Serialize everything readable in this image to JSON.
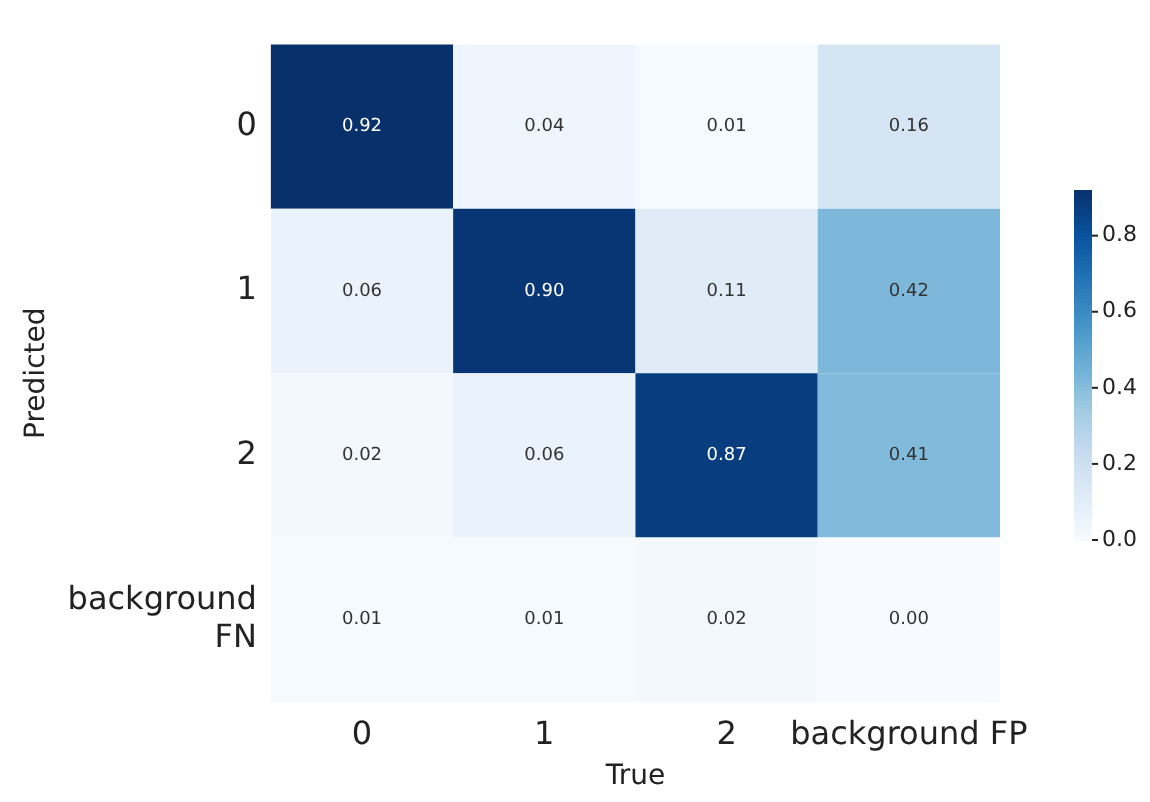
{
  "chart_data": {
    "type": "heatmap",
    "xlabel": "True",
    "ylabel": "Predicted",
    "categories": [
      "0",
      "1",
      "2",
      "background FP"
    ],
    "y_categories": [
      "0",
      "1",
      "2",
      "background FN"
    ],
    "cells": [
      [
        0.92,
        0.04,
        0.01,
        0.16
      ],
      [
        0.06,
        0.9,
        0.11,
        0.42
      ],
      [
        0.02,
        0.06,
        0.87,
        0.41
      ],
      [
        0.01,
        0.01,
        0.02,
        0.0
      ]
    ],
    "cell_labels": [
      [
        "0.92",
        "0.04",
        "0.01",
        "0.16"
      ],
      [
        "0.06",
        "0.90",
        "0.11",
        "0.42"
      ],
      [
        "0.02",
        "0.06",
        "0.87",
        "0.41"
      ],
      [
        "0.01",
        "0.01",
        "0.02",
        "0.00"
      ]
    ],
    "clim": [
      0,
      0.92
    ],
    "cticks": [
      {
        "value": 0,
        "label": "0.0"
      },
      {
        "value": 0.2,
        "label": "0.2"
      },
      {
        "value": 0.4,
        "label": "0.4"
      },
      {
        "value": 0.6,
        "label": "0.6"
      },
      {
        "value": 0.8,
        "label": "0.8"
      }
    ]
  }
}
